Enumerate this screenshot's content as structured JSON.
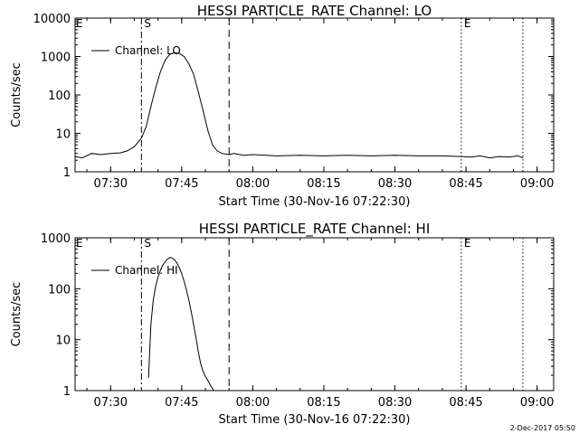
{
  "chart_data": [
    {
      "type": "line",
      "title": "HESSI PARTICLE_RATE Channel: LO",
      "xlabel": "Start Time (30-Nov-16 07:22:30)",
      "ylabel": "Counts/sec",
      "yscale": "log",
      "xlim": [
        "07:22:30",
        "09:03:30"
      ],
      "ylim": [
        1,
        10000
      ],
      "xticks": [
        "07:30",
        "07:45",
        "08:00",
        "08:15",
        "08:30",
        "08:45",
        "09:00"
      ],
      "yticks": [
        "1",
        "10",
        "100",
        "1000",
        "10000"
      ],
      "legend": {
        "position": "top-left",
        "entries": [
          "Channel: LO"
        ]
      },
      "markers": [
        {
          "label": "S",
          "time": "07:36:30",
          "style": "dash-dot"
        },
        {
          "label": "",
          "time": "07:55:00",
          "style": "dashed"
        },
        {
          "label": "E",
          "time": "08:44:00",
          "style": "dotted"
        },
        {
          "label": "",
          "time": "08:57:00",
          "style": "dotted"
        }
      ],
      "edge_label": "E",
      "series": [
        {
          "name": "Channel: LO",
          "x": [
            "07:22:30",
            "07:24:00",
            "07:26:00",
            "07:28:00",
            "07:30:00",
            "07:32:00",
            "07:33:30",
            "07:35:00",
            "07:36:30",
            "07:37:30",
            "07:38:30",
            "07:39:30",
            "07:40:30",
            "07:41:30",
            "07:42:30",
            "07:43:30",
            "07:44:30",
            "07:45:30",
            "07:46:30",
            "07:47:30",
            "07:48:30",
            "07:49:30",
            "07:50:30",
            "07:51:30",
            "07:52:30",
            "07:53:30",
            "07:55:00",
            "07:56:00",
            "07:58:00",
            "08:00:00",
            "08:05:00",
            "08:10:00",
            "08:15:00",
            "08:20:00",
            "08:25:00",
            "08:30:00",
            "08:35:00",
            "08:40:00",
            "08:44:00",
            "08:46:00",
            "08:48:00",
            "08:50:00",
            "08:52:00",
            "08:54:00",
            "08:56:00",
            "08:57:00"
          ],
          "y": [
            2.5,
            2.3,
            3.0,
            2.8,
            3.0,
            3.1,
            3.5,
            4.5,
            7.5,
            15,
            50,
            150,
            400,
            800,
            1150,
            1250,
            1200,
            1000,
            650,
            350,
            120,
            40,
            12,
            5,
            3.5,
            3.0,
            2.8,
            3.0,
            2.7,
            2.8,
            2.6,
            2.7,
            2.6,
            2.7,
            2.6,
            2.7,
            2.6,
            2.6,
            2.5,
            2.4,
            2.6,
            2.3,
            2.5,
            2.4,
            2.6,
            2.3
          ]
        }
      ]
    },
    {
      "type": "line",
      "title": "HESSI PARTICLE_RATE Channel: HI",
      "xlabel": "Start Time (30-Nov-16 07:22:30)",
      "ylabel": "Counts/sec",
      "yscale": "log",
      "xlim": [
        "07:22:30",
        "09:03:30"
      ],
      "ylim": [
        1,
        1000
      ],
      "xticks": [
        "07:30",
        "07:45",
        "08:00",
        "08:15",
        "08:30",
        "08:45",
        "09:00"
      ],
      "yticks": [
        "1",
        "10",
        "100",
        "1000"
      ],
      "legend": {
        "position": "top-left",
        "entries": [
          "Channel: HI"
        ]
      },
      "markers": [
        {
          "label": "S",
          "time": "07:36:30",
          "style": "dash-dot"
        },
        {
          "label": "",
          "time": "07:55:00",
          "style": "dashed"
        },
        {
          "label": "E",
          "time": "08:44:00",
          "style": "dotted"
        },
        {
          "label": "",
          "time": "08:57:00",
          "style": "dotted"
        }
      ],
      "edge_label": "E",
      "series": [
        {
          "name": "Channel: HI",
          "x": [
            "07:38:00",
            "07:38:30",
            "07:39:00",
            "07:39:30",
            "07:40:00",
            "07:40:30",
            "07:41:00",
            "07:41:30",
            "07:42:00",
            "07:42:30",
            "07:43:00",
            "07:43:30",
            "07:44:00",
            "07:44:30",
            "07:45:00",
            "07:45:30",
            "07:46:00",
            "07:46:30",
            "07:47:00",
            "07:47:30",
            "07:48:00",
            "07:48:30",
            "07:49:00",
            "07:49:30",
            "07:50:00",
            "07:50:30",
            "07:51:00",
            "07:51:30",
            "07:51:45"
          ],
          "y": [
            1.8,
            20,
            60,
            110,
            170,
            230,
            290,
            340,
            380,
            410,
            400,
            370,
            320,
            260,
            200,
            140,
            95,
            60,
            36,
            20,
            11,
            5.8,
            3.4,
            2.4,
            1.9,
            1.6,
            1.3,
            1.1,
            1.0
          ]
        }
      ]
    }
  ],
  "footer_timestamp": "2-Dec-2017 05:50"
}
